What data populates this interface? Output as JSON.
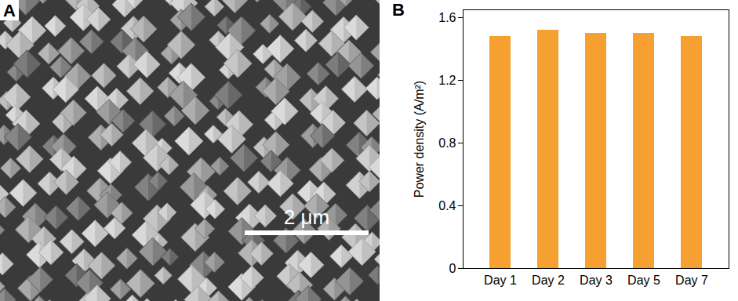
{
  "image_panel": {
    "panel_label": "A",
    "scale_bar": "2 μm"
  },
  "chart_data": {
    "type": "bar",
    "panel_label": "B",
    "ylabel": "Power density (A/m²)",
    "categories": [
      "Day 1",
      "Day 2",
      "Day 3",
      "Day 5",
      "Day 7"
    ],
    "values": [
      1.48,
      1.52,
      1.5,
      1.5,
      1.48
    ],
    "color": "#f5a030",
    "ylim": [
      0,
      1.65
    ],
    "yticks": [
      0,
      0.4,
      0.8,
      1.2,
      1.6
    ],
    "grid": false
  }
}
